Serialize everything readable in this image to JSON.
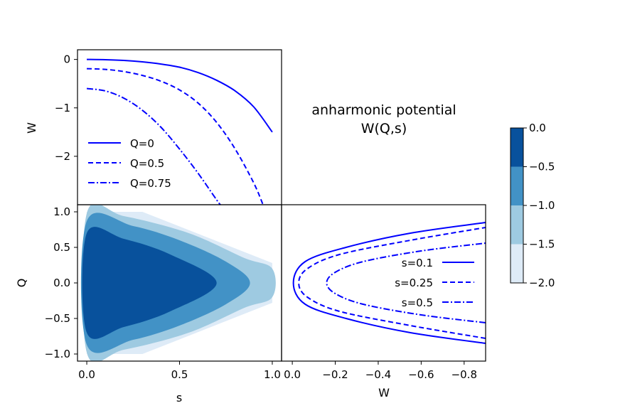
{
  "chart_data": {
    "type": "composite",
    "title": [
      "anharmonic potential",
      "W(Q,s)"
    ],
    "colors": {
      "line": "#0000ff",
      "levels": [
        "#deebf7",
        "#9ecae1",
        "#4292c6",
        "#08519c"
      ]
    },
    "panel_top": {
      "type": "line",
      "xlabel": "",
      "ylabel": "W",
      "xlim": [
        -0.05,
        1.05
      ],
      "ylim": [
        -3.0,
        0.2
      ],
      "yticks": [
        0,
        -1,
        -2
      ],
      "ytick_labels": [
        "0",
        "−1",
        "−2"
      ],
      "legend_position": "lower-left",
      "series": [
        {
          "name": "Q=0",
          "style": "solid",
          "x": [
            0,
            0.1,
            0.2,
            0.3,
            0.4,
            0.5,
            0.6,
            0.7,
            0.8,
            0.9,
            1.0
          ],
          "y": [
            0,
            -0.005,
            -0.02,
            -0.05,
            -0.095,
            -0.16,
            -0.27,
            -0.43,
            -0.65,
            -0.98,
            -1.5
          ]
        },
        {
          "name": "Q=0.5",
          "style": "dashed",
          "x": [
            0,
            0.1,
            0.2,
            0.3,
            0.4,
            0.5,
            0.6,
            0.7,
            0.8,
            0.9,
            0.95
          ],
          "y": [
            -0.19,
            -0.205,
            -0.25,
            -0.33,
            -0.45,
            -0.63,
            -0.9,
            -1.3,
            -1.85,
            -2.55,
            -3.0
          ]
        },
        {
          "name": "Q=0.75",
          "style": "dashdot",
          "x": [
            0,
            0.1,
            0.2,
            0.3,
            0.4,
            0.5,
            0.6,
            0.7,
            0.72
          ],
          "y": [
            -0.6,
            -0.65,
            -0.8,
            -1.05,
            -1.4,
            -1.85,
            -2.35,
            -2.9,
            -3.0
          ]
        }
      ]
    },
    "panel_contour": {
      "type": "filled-contour",
      "xlabel": "s",
      "ylabel": "Q",
      "xlim": [
        -0.05,
        1.05
      ],
      "ylim": [
        -1.1,
        1.1
      ],
      "xticks": [
        0.0,
        0.5,
        1.0
      ],
      "xtick_labels": [
        "0.0",
        "0.5",
        "1.0"
      ],
      "yticks": [
        1.0,
        0.5,
        0.0,
        -0.5,
        -1.0
      ],
      "ytick_labels": [
        "1.0",
        "0.5",
        "0.0",
        "−0.5",
        "−1.0"
      ],
      "regions": [
        {
          "level": "-2.0 to -1.5",
          "boundary": [
            [
              0,
              1.0
            ],
            [
              0.3,
              1.0
            ],
            [
              1.0,
              0.28
            ],
            [
              1.0,
              -0.28
            ],
            [
              0.3,
              -1.0
            ],
            [
              0,
              -1.0
            ]
          ]
        },
        {
          "level": "-1.5 to -1.0",
          "boundary": [
            [
              0,
              0.98
            ],
            [
              0.2,
              0.94
            ],
            [
              0.55,
              0.7
            ],
            [
              0.85,
              0.35
            ],
            [
              1.0,
              0.2
            ],
            [
              1.0,
              -0.2
            ],
            [
              0.85,
              -0.35
            ],
            [
              0.55,
              -0.7
            ],
            [
              0.2,
              -0.94
            ],
            [
              0,
              -0.98
            ]
          ]
        },
        {
          "level": "-1.0 to -0.5",
          "boundary": [
            [
              0,
              0.87
            ],
            [
              0.25,
              0.8
            ],
            [
              0.5,
              0.6
            ],
            [
              0.75,
              0.3
            ],
            [
              0.88,
              0.0
            ],
            [
              0.75,
              -0.3
            ],
            [
              0.5,
              -0.6
            ],
            [
              0.25,
              -0.8
            ],
            [
              0,
              -0.87
            ]
          ]
        },
        {
          "level": "-0.5 to 0.0",
          "boundary": [
            [
              0,
              0.7
            ],
            [
              0.2,
              0.62
            ],
            [
              0.45,
              0.4
            ],
            [
              0.7,
              0.0
            ],
            [
              0.45,
              -0.4
            ],
            [
              0.2,
              -0.62
            ],
            [
              0,
              -0.7
            ]
          ]
        }
      ]
    },
    "panel_right": {
      "type": "line",
      "xlabel": "W",
      "ylabel": "",
      "xlim": [
        0.05,
        -0.9
      ],
      "ylim": [
        -1.1,
        1.1
      ],
      "xticks": [
        0.0,
        -0.2,
        -0.4,
        -0.6,
        -0.8
      ],
      "xtick_labels": [
        "0.0",
        "−0.2",
        "−0.4",
        "−0.6",
        "−0.8"
      ],
      "legend_position": "center-right",
      "series": [
        {
          "name": "s=0.1",
          "style": "solid",
          "W_at_Q0": -0.005,
          "Q": [
            -0.85,
            -0.7,
            -0.5,
            -0.3,
            0,
            0.3,
            0.5,
            0.7,
            0.85
          ],
          "W": [
            -0.9,
            -0.55,
            -0.25,
            -0.06,
            -0.005,
            -0.06,
            -0.25,
            -0.55,
            -0.9
          ]
        },
        {
          "name": "s=0.25",
          "style": "dashed",
          "W_at_Q0": -0.03,
          "Q": [
            -0.78,
            -0.6,
            -0.4,
            -0.2,
            0,
            0.2,
            0.4,
            0.6,
            0.78
          ],
          "W": [
            -0.9,
            -0.55,
            -0.22,
            -0.07,
            -0.03,
            -0.07,
            -0.22,
            -0.55,
            -0.9
          ]
        },
        {
          "name": "s=0.5",
          "style": "dashdot",
          "W_at_Q0": -0.16,
          "Q": [
            -0.56,
            -0.45,
            -0.3,
            -0.15,
            0,
            0.15,
            0.3,
            0.45,
            0.56
          ],
          "W": [
            -0.9,
            -0.6,
            -0.33,
            -0.2,
            -0.16,
            -0.2,
            -0.33,
            -0.6,
            -0.9
          ]
        }
      ]
    },
    "colorbar": {
      "ticks": [
        0.0,
        -0.5,
        -1.0,
        -1.5,
        -2.0
      ],
      "tick_labels": [
        "0.0",
        "−0.5",
        "−1.0",
        "−1.5",
        "−2.0"
      ]
    }
  }
}
